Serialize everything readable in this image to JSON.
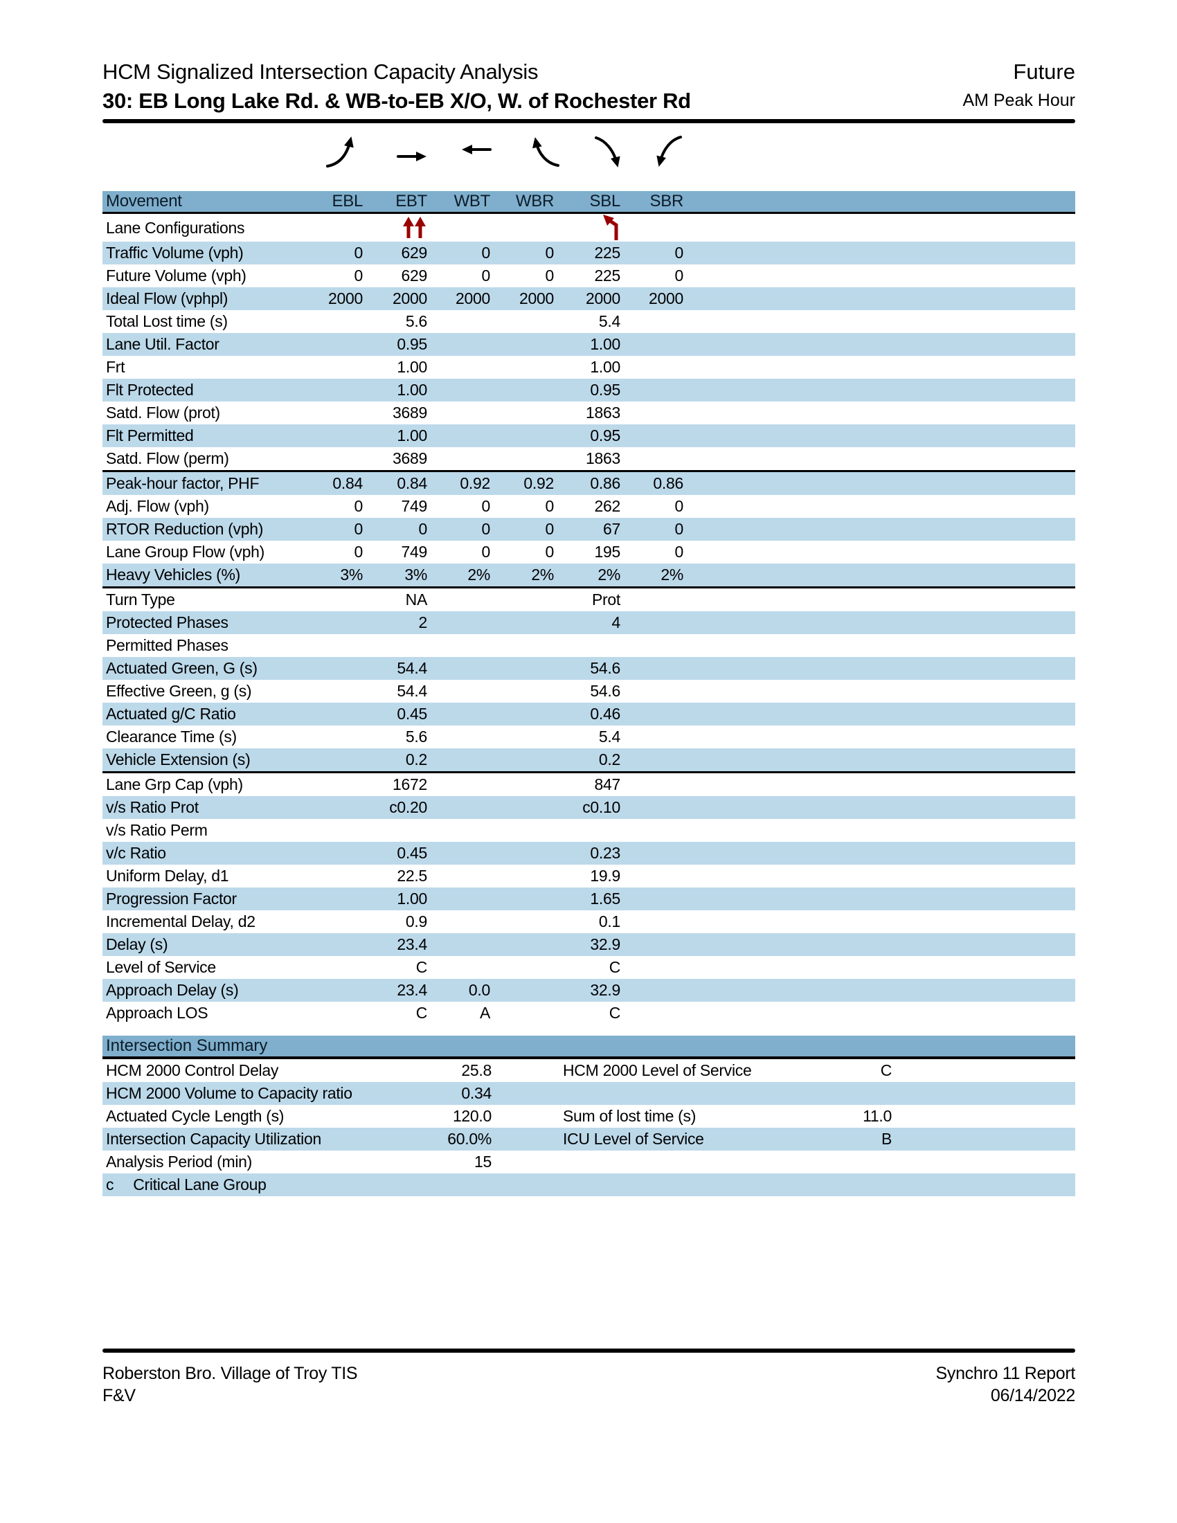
{
  "header": {
    "title": "HCM Signalized Intersection Capacity Analysis",
    "subtitle": "30: EB Long Lake Rd. & WB-to-EB X/O, W. of Rochester Rd",
    "scenario": "Future",
    "peak": "AM Peak Hour"
  },
  "colors": {
    "header_band_blue": "#7fafcc",
    "shaded_row_blue": "#bcd9ea",
    "lane_marker_red": "#990000",
    "rule_black": "#000000"
  },
  "movement_arrows": [
    {
      "column": "EBL",
      "icon": "eb-left-turn-arrow-icon"
    },
    {
      "column": "EBT",
      "icon": "eb-through-arrow-icon"
    },
    {
      "column": "WBT",
      "icon": "wb-through-arrow-icon"
    },
    {
      "column": "WBR",
      "icon": "wb-right-turn-arrow-icon"
    },
    {
      "column": "SBL",
      "icon": "sb-left-turn-arrow-icon"
    },
    {
      "column": "SBR",
      "icon": "sb-right-turn-arrow-icon"
    }
  ],
  "table": {
    "label": "Movement",
    "columns": [
      "EBL",
      "EBT",
      "WBT",
      "WBR",
      "SBL",
      "SBR"
    ],
    "rows": [
      {
        "label": "Lane Configurations",
        "type": "lane_config",
        "icons": [
          "",
          "double-through-arrow",
          "",
          "",
          "left-turn-lane-arrow",
          ""
        ],
        "values": [
          "",
          "",
          "",
          "",
          "",
          ""
        ],
        "shaded": false
      },
      {
        "label": "Traffic Volume (vph)",
        "values": [
          "0",
          "629",
          "0",
          "0",
          "225",
          "0"
        ],
        "shaded": true
      },
      {
        "label": "Future Volume (vph)",
        "values": [
          "0",
          "629",
          "0",
          "0",
          "225",
          "0"
        ],
        "shaded": false
      },
      {
        "label": "Ideal Flow (vphpl)",
        "values": [
          "2000",
          "2000",
          "2000",
          "2000",
          "2000",
          "2000"
        ],
        "shaded": true
      },
      {
        "label": "Total Lost time (s)",
        "values": [
          "",
          "5.6",
          "",
          "",
          "5.4",
          ""
        ],
        "shaded": false
      },
      {
        "label": "Lane Util. Factor",
        "values": [
          "",
          "0.95",
          "",
          "",
          "1.00",
          ""
        ],
        "shaded": true
      },
      {
        "label": "Frt",
        "values": [
          "",
          "1.00",
          "",
          "",
          "1.00",
          ""
        ],
        "shaded": false
      },
      {
        "label": "Flt Protected",
        "values": [
          "",
          "1.00",
          "",
          "",
          "0.95",
          ""
        ],
        "shaded": true
      },
      {
        "label": "Satd. Flow (prot)",
        "values": [
          "",
          "3689",
          "",
          "",
          "1863",
          ""
        ],
        "shaded": false
      },
      {
        "label": "Flt Permitted",
        "values": [
          "",
          "1.00",
          "",
          "",
          "0.95",
          ""
        ],
        "shaded": true
      },
      {
        "label": "Satd. Flow (perm)",
        "values": [
          "",
          "3689",
          "",
          "",
          "1863",
          ""
        ],
        "shaded": false,
        "border_after": true
      },
      {
        "label": "Peak-hour factor, PHF",
        "values": [
          "0.84",
          "0.84",
          "0.92",
          "0.92",
          "0.86",
          "0.86"
        ],
        "shaded": true
      },
      {
        "label": "Adj. Flow (vph)",
        "values": [
          "0",
          "749",
          "0",
          "0",
          "262",
          "0"
        ],
        "shaded": false
      },
      {
        "label": "RTOR Reduction (vph)",
        "values": [
          "0",
          "0",
          "0",
          "0",
          "67",
          "0"
        ],
        "shaded": true
      },
      {
        "label": "Lane Group Flow (vph)",
        "values": [
          "0",
          "749",
          "0",
          "0",
          "195",
          "0"
        ],
        "shaded": false
      },
      {
        "label": "Heavy Vehicles (%)",
        "values": [
          "3%",
          "3%",
          "2%",
          "2%",
          "2%",
          "2%"
        ],
        "shaded": true,
        "border_after": true
      },
      {
        "label": "Turn Type",
        "values": [
          "",
          "NA",
          "",
          "",
          "Prot",
          ""
        ],
        "shaded": false
      },
      {
        "label": "Protected Phases",
        "values": [
          "",
          "2",
          "",
          "",
          "4",
          ""
        ],
        "shaded": true
      },
      {
        "label": "Permitted Phases",
        "values": [
          "",
          "",
          "",
          "",
          "",
          ""
        ],
        "shaded": false
      },
      {
        "label": "Actuated Green, G (s)",
        "values": [
          "",
          "54.4",
          "",
          "",
          "54.6",
          ""
        ],
        "shaded": true
      },
      {
        "label": "Effective Green, g (s)",
        "values": [
          "",
          "54.4",
          "",
          "",
          "54.6",
          ""
        ],
        "shaded": false
      },
      {
        "label": "Actuated g/C Ratio",
        "values": [
          "",
          "0.45",
          "",
          "",
          "0.46",
          ""
        ],
        "shaded": true
      },
      {
        "label": "Clearance Time (s)",
        "values": [
          "",
          "5.6",
          "",
          "",
          "5.4",
          ""
        ],
        "shaded": false
      },
      {
        "label": "Vehicle Extension (s)",
        "values": [
          "",
          "0.2",
          "",
          "",
          "0.2",
          ""
        ],
        "shaded": true,
        "border_after": true
      },
      {
        "label": "Lane Grp Cap (vph)",
        "values": [
          "",
          "1672",
          "",
          "",
          "847",
          ""
        ],
        "shaded": false
      },
      {
        "label": "v/s Ratio Prot",
        "values": [
          "",
          "c0.20",
          "",
          "",
          "c0.10",
          ""
        ],
        "shaded": true
      },
      {
        "label": "v/s Ratio Perm",
        "values": [
          "",
          "",
          "",
          "",
          "",
          ""
        ],
        "shaded": false
      },
      {
        "label": "v/c Ratio",
        "values": [
          "",
          "0.45",
          "",
          "",
          "0.23",
          ""
        ],
        "shaded": true
      },
      {
        "label": "Uniform Delay, d1",
        "values": [
          "",
          "22.5",
          "",
          "",
          "19.9",
          ""
        ],
        "shaded": false
      },
      {
        "label": "Progression Factor",
        "values": [
          "",
          "1.00",
          "",
          "",
          "1.65",
          ""
        ],
        "shaded": true
      },
      {
        "label": "Incremental Delay, d2",
        "values": [
          "",
          "0.9",
          "",
          "",
          "0.1",
          ""
        ],
        "shaded": false
      },
      {
        "label": "Delay (s)",
        "values": [
          "",
          "23.4",
          "",
          "",
          "32.9",
          ""
        ],
        "shaded": true
      },
      {
        "label": "Level of Service",
        "values": [
          "",
          "C",
          "",
          "",
          "C",
          ""
        ],
        "shaded": false
      },
      {
        "label": "Approach Delay (s)",
        "values": [
          "",
          "23.4",
          "0.0",
          "",
          "32.9",
          ""
        ],
        "shaded": true
      },
      {
        "label": "Approach LOS",
        "values": [
          "",
          "C",
          "A",
          "",
          "C",
          ""
        ],
        "shaded": false
      }
    ]
  },
  "summary": {
    "header": "Intersection Summary",
    "rows": [
      {
        "label": "HCM 2000 Control Delay",
        "value": "25.8",
        "label2": "HCM 2000 Level of Service",
        "value2": "C",
        "shaded": false
      },
      {
        "label": "HCM 2000 Volume to Capacity ratio",
        "value": "0.34",
        "label2": "",
        "value2": "",
        "shaded": true
      },
      {
        "label": "Actuated Cycle Length (s)",
        "value": "120.0",
        "label2": "Sum of lost time (s)",
        "value2": "11.0",
        "shaded": false
      },
      {
        "label": "Intersection Capacity Utilization",
        "value": "60.0%",
        "label2": "ICU Level of Service",
        "value2": "B",
        "shaded": true
      },
      {
        "label": "Analysis Period (min)",
        "value": "15",
        "label2": "",
        "value2": "",
        "shaded": false
      },
      {
        "footnote": true,
        "prefix": "c",
        "label": "Critical Lane Group",
        "shaded": true
      }
    ]
  },
  "footer": {
    "project": "Roberston Bro. Village of Troy TIS",
    "firm": "F&V",
    "report": "Synchro 11 Report",
    "date": "06/14/2022"
  }
}
